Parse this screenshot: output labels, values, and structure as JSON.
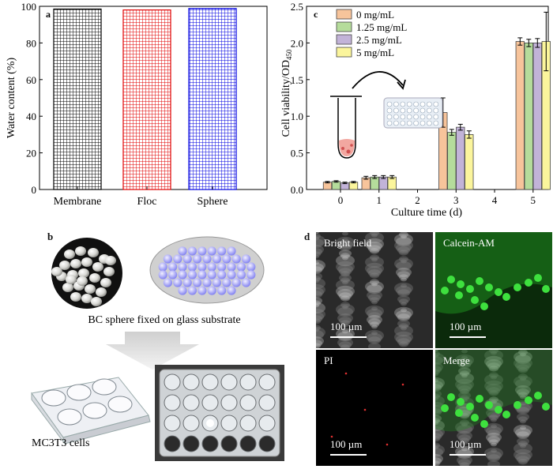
{
  "panels": {
    "a": {
      "letter": "a",
      "ylabel": "Water content (%)",
      "yticks": [
        "0",
        "20",
        "40",
        "60",
        "80",
        "100"
      ]
    },
    "c": {
      "letter": "c",
      "ylabel_main": "Cell viability/OD",
      "ylabel_sub": "450",
      "xlabel": "Culture time (d)",
      "xticks": [
        "0",
        "1",
        "2",
        "3",
        "4",
        "5"
      ],
      "yticks": [
        "0.0",
        "0.5",
        "1.0",
        "1.5",
        "2.0",
        "2.5"
      ]
    },
    "b": {
      "letter": "b",
      "caption": "BC sphere fixed on glass substrate",
      "cells_label": "MC3T3 cells"
    },
    "d": {
      "letter": "d",
      "quad_labels": [
        "Bright field",
        "Calcein-AM",
        "PI",
        "Merge"
      ],
      "scalebar_text": "100 µm"
    }
  },
  "chart_data": [
    {
      "type": "bar",
      "title": "",
      "categories": [
        "Membrane",
        "Floc",
        "Sphere"
      ],
      "values": [
        98.5,
        98.0,
        98.8
      ],
      "ylabel": "Water content (%)",
      "ylim": [
        0,
        100
      ],
      "colors": [
        "#000000",
        "#e00000",
        "#0000e0"
      ],
      "pattern": "grid"
    },
    {
      "type": "bar",
      "title": "",
      "xlabel": "Culture time (d)",
      "ylabel": "Cell viability/OD450",
      "ylim": [
        0,
        2.5
      ],
      "x": [
        0,
        1,
        3,
        5
      ],
      "series": [
        {
          "name": "0 mg/mL",
          "color": "#f7c49b",
          "values": [
            0.1,
            0.16,
            1.05,
            2.02
          ],
          "errors": [
            0.01,
            0.02,
            0.2,
            0.05
          ]
        },
        {
          "name": "1.25 mg/mL",
          "color": "#b5dc9b",
          "values": [
            0.11,
            0.17,
            0.78,
            2.0
          ],
          "errors": [
            0.01,
            0.02,
            0.04,
            0.05
          ]
        },
        {
          "name": "2.5 mg/mL",
          "color": "#c2b3d8",
          "values": [
            0.09,
            0.17,
            0.85,
            2.0
          ],
          "errors": [
            0.01,
            0.02,
            0.04,
            0.06
          ]
        },
        {
          "name": "5 mg/mL",
          "color": "#fbf59c",
          "values": [
            0.1,
            0.17,
            0.75,
            2.02
          ],
          "errors": [
            0.01,
            0.02,
            0.05,
            0.4
          ]
        }
      ],
      "legend": "top-left"
    }
  ]
}
